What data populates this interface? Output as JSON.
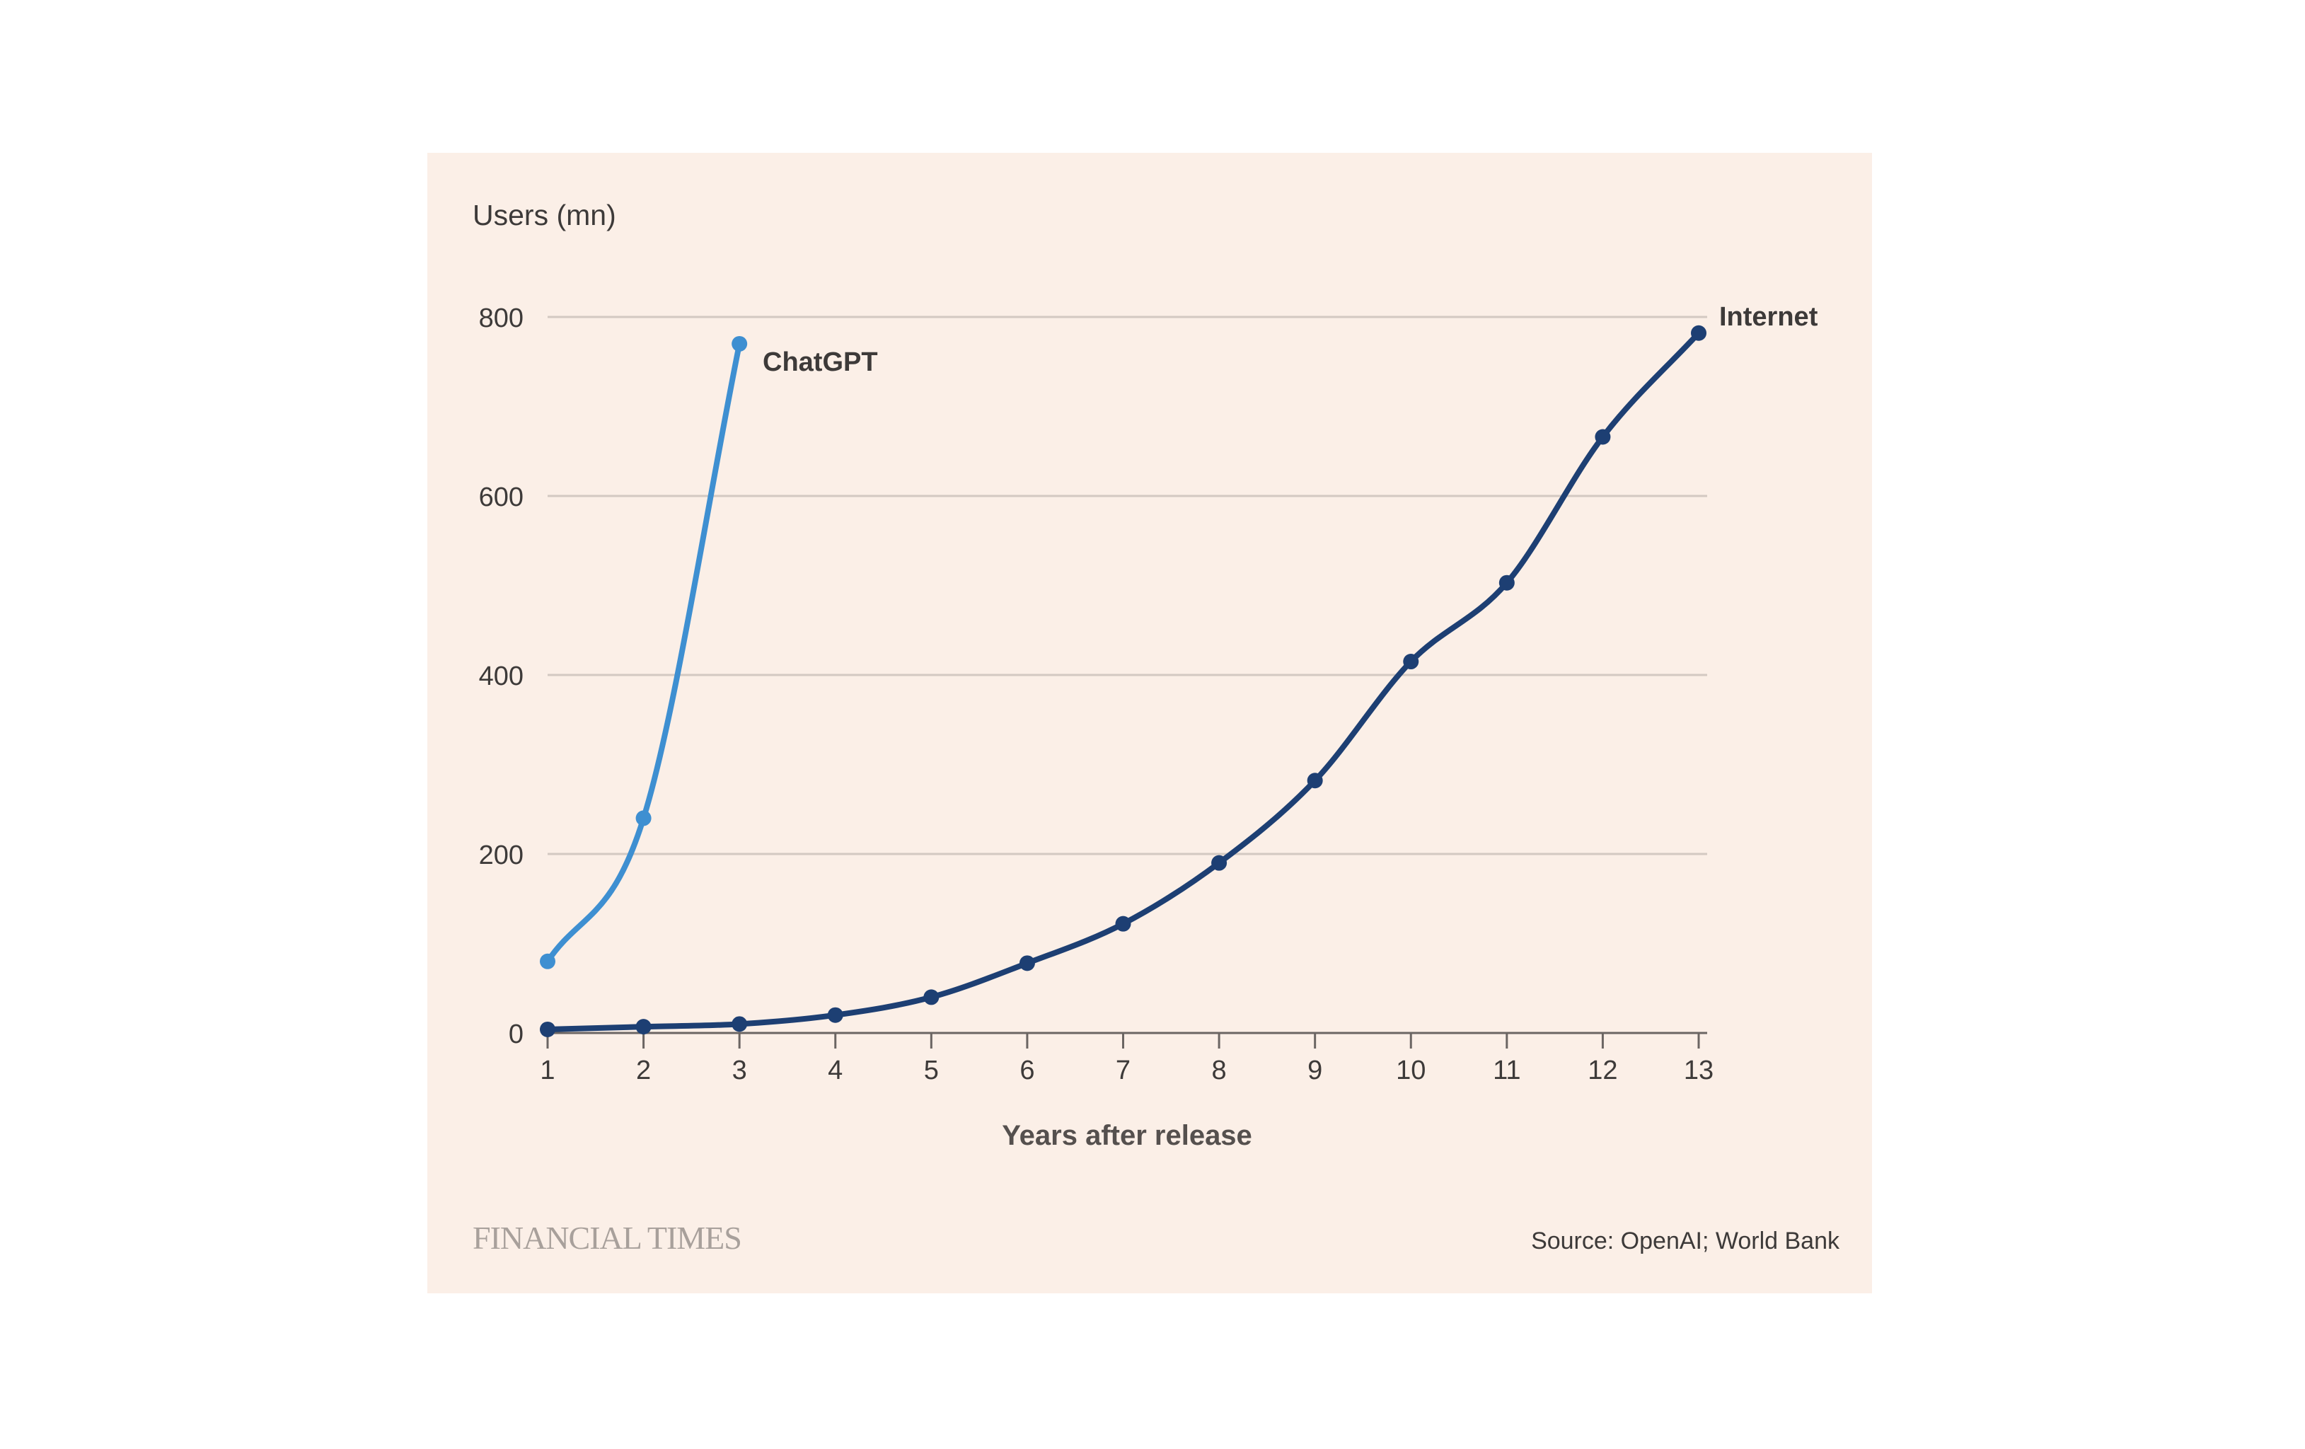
{
  "chart_data": {
    "type": "line",
    "ylabel": "Users (mn)",
    "xlabel": "Years after release",
    "x": [
      1,
      2,
      3,
      4,
      5,
      6,
      7,
      8,
      9,
      10,
      11,
      12,
      13
    ],
    "xlim": [
      1,
      13
    ],
    "ylim": [
      0,
      800
    ],
    "yticks": [
      0,
      200,
      400,
      600,
      800
    ],
    "grid": true,
    "series": [
      {
        "name": "ChatGPT",
        "color": "#3e8fd1",
        "x": [
          1,
          2,
          3
        ],
        "values": [
          80,
          240,
          770
        ]
      },
      {
        "name": "Internet",
        "color": "#1d3f73",
        "x": [
          1,
          2,
          3,
          4,
          5,
          6,
          7,
          8,
          9,
          10,
          11,
          12,
          13
        ],
        "values": [
          4,
          7,
          10,
          20,
          40,
          78,
          122,
          190,
          282,
          415,
          503,
          666,
          782
        ]
      }
    ]
  },
  "footer": {
    "brand": "FINANCIAL TIMES",
    "source": "Source: OpenAI; World Bank"
  },
  "colors": {
    "background": "#fbefe7",
    "grid": "#d3c9c2",
    "axis": "#6b6563",
    "text": "#3d3a39",
    "brand": "#a8a09b"
  }
}
